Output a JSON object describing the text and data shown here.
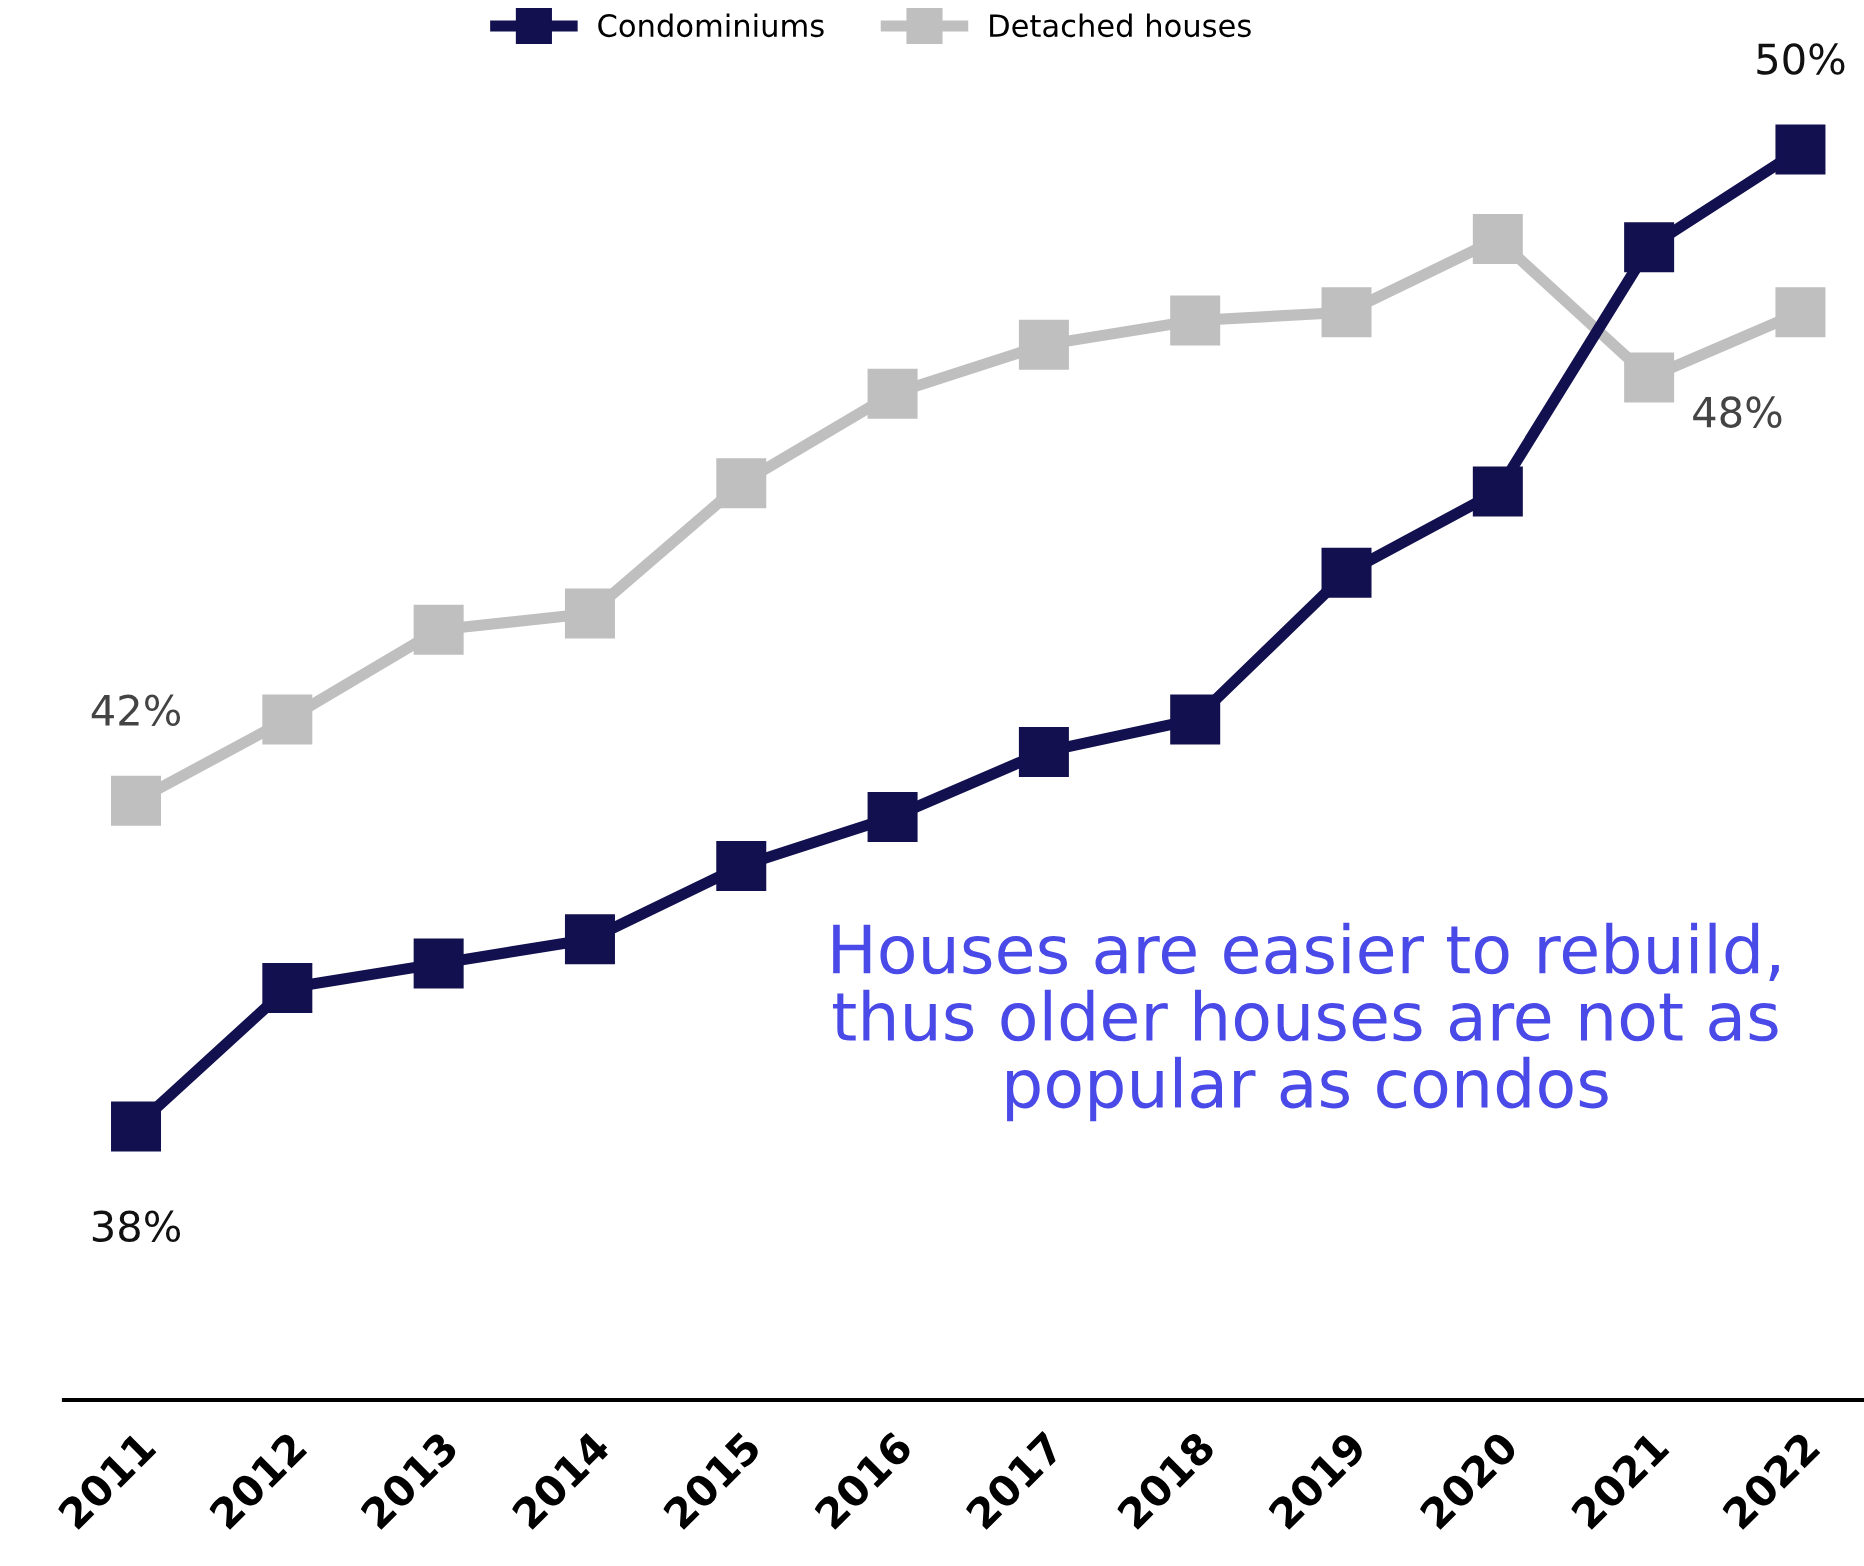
{
  "chart_data": {
    "type": "line",
    "categories": [
      "2011",
      "2012",
      "2013",
      "2014",
      "2015",
      "2016",
      "2017",
      "2018",
      "2019",
      "2020",
      "2021",
      "2022"
    ],
    "series": [
      {
        "name": "Condominiums",
        "color": "#12104f",
        "values": [
          38,
          39.7,
          40.0,
          40.3,
          41.2,
          41.8,
          42.6,
          43.0,
          44.8,
          45.8,
          48.8,
          50
        ],
        "value_labels": [
          "38%",
          null,
          null,
          null,
          null,
          null,
          null,
          null,
          null,
          null,
          null,
          "50%"
        ]
      },
      {
        "name": "Detached houses",
        "color": "#bfbfbf",
        "values": [
          42,
          43.0,
          44.1,
          44.3,
          45.9,
          47.0,
          47.6,
          47.9,
          48.0,
          48.9,
          47.2,
          48
        ],
        "value_labels": [
          "42%",
          null,
          null,
          null,
          null,
          null,
          null,
          null,
          null,
          null,
          null,
          "48%"
        ]
      }
    ],
    "marker": "square",
    "line_style": "solid",
    "legend": "top",
    "grid": false,
    "annotations": [
      "Houses are easier to rebuild, thus older houses are not as popular as condos"
    ]
  }
}
